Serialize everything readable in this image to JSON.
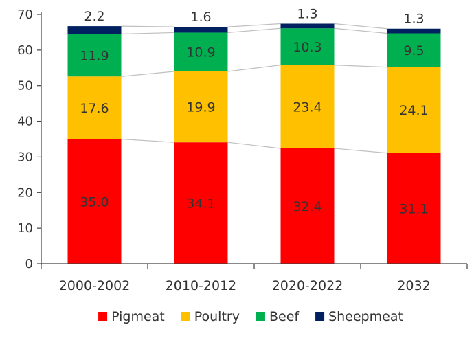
{
  "chart_data": {
    "type": "bar",
    "stacked": true,
    "categories": [
      "2000-2002",
      "2010-2012",
      "2020-2022",
      "2032"
    ],
    "series": [
      {
        "name": "Pigmeat",
        "color": "#ff0000",
        "values": [
          35.0,
          34.1,
          32.4,
          31.1
        ]
      },
      {
        "name": "Poultry",
        "color": "#ffc000",
        "values": [
          17.6,
          19.9,
          23.4,
          24.1
        ]
      },
      {
        "name": "Beef",
        "color": "#00b050",
        "values": [
          11.9,
          10.9,
          10.3,
          9.5
        ]
      },
      {
        "name": "Sheepmeat",
        "color": "#002060",
        "values": [
          2.2,
          1.6,
          1.3,
          1.3
        ]
      }
    ],
    "data_labels": {
      "Pigmeat": [
        "35.0",
        "34.1",
        "32.4",
        "31.1"
      ],
      "Poultry": [
        "17.6",
        "19.9",
        "23.4",
        "24.1"
      ],
      "Beef": [
        "11.9",
        "10.9",
        "10.3",
        "9.5"
      ],
      "Sheepmeat": [
        "2.2",
        "1.6",
        "1.3",
        "1.3"
      ]
    },
    "y_ticks": [
      "0",
      "10",
      "20",
      "30",
      "40",
      "50",
      "60",
      "70"
    ],
    "ylim": [
      0,
      70
    ],
    "connector_lines": true,
    "grid": false,
    "legend_position": "bottom",
    "title": "",
    "xlabel": "",
    "ylabel": ""
  }
}
